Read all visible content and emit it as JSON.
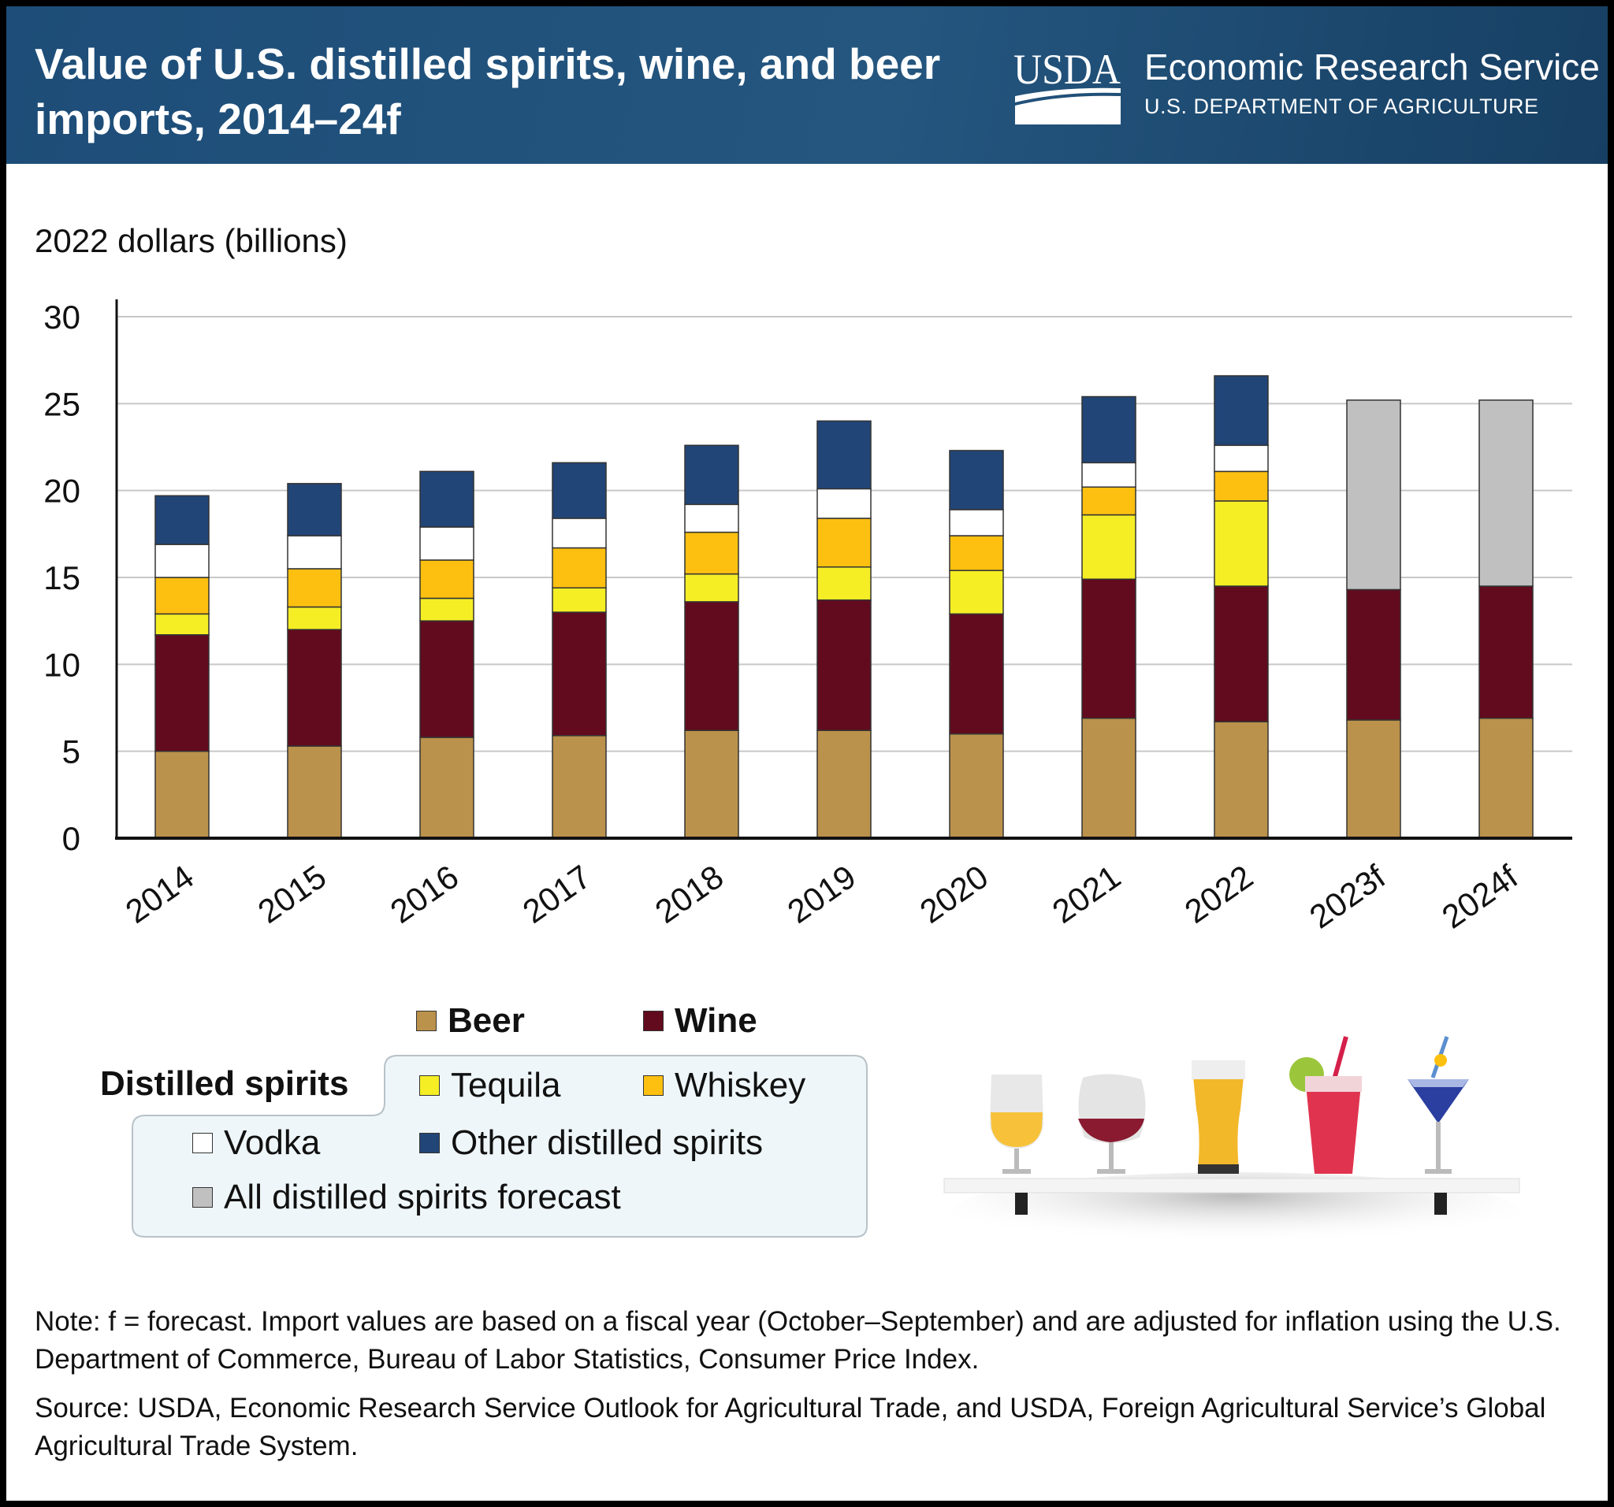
{
  "header": {
    "title": "Value of U.S. distilled spirits, wine, and beer imports, 2014–24f",
    "logo_text": "USDA",
    "agency": "Economic Research Service",
    "department": "U.S. DEPARTMENT OF AGRICULTURE"
  },
  "legend": {
    "group_label": "Distilled spirits",
    "items": [
      {
        "label": "Beer",
        "color": "#bb924b"
      },
      {
        "label": "Wine",
        "color": "#630b1e"
      },
      {
        "label": "Tequila",
        "color": "#f5ee25"
      },
      {
        "label": "Whiskey",
        "color": "#fdc010"
      },
      {
        "label": "Vodka",
        "color": "#ffffff"
      },
      {
        "label": "Other distilled spirits",
        "color": "#224577"
      },
      {
        "label": "All distilled spirits forecast",
        "color": "#c0c0c0"
      }
    ]
  },
  "chart_data": {
    "type": "bar",
    "stacked": true,
    "ylabel": "2022 dollars (billions)",
    "ylim": [
      0,
      30
    ],
    "yticks": [
      0,
      5,
      10,
      15,
      20,
      25,
      30
    ],
    "grid": true,
    "categories": [
      "2014",
      "2015",
      "2016",
      "2017",
      "2018",
      "2019",
      "2020",
      "2021",
      "2022",
      "2023f",
      "2024f"
    ],
    "series": [
      {
        "name": "Beer",
        "color": "#bb924b",
        "values": [
          5.0,
          5.3,
          5.8,
          5.9,
          6.2,
          6.2,
          6.0,
          6.9,
          6.7,
          6.8,
          6.9
        ]
      },
      {
        "name": "Wine",
        "color": "#630b1e",
        "values": [
          6.7,
          6.7,
          6.7,
          7.1,
          7.4,
          7.5,
          6.9,
          8.0,
          7.8,
          7.5,
          7.6
        ]
      },
      {
        "name": "Tequila",
        "color": "#f5ee25",
        "values": [
          1.2,
          1.3,
          1.3,
          1.4,
          1.6,
          1.9,
          2.5,
          3.7,
          4.9,
          null,
          null
        ]
      },
      {
        "name": "Whiskey",
        "color": "#fdc010",
        "values": [
          2.1,
          2.2,
          2.2,
          2.3,
          2.4,
          2.8,
          2.0,
          1.6,
          1.7,
          null,
          null
        ]
      },
      {
        "name": "Vodka",
        "color": "#ffffff",
        "values": [
          1.9,
          1.9,
          1.9,
          1.7,
          1.6,
          1.7,
          1.5,
          1.4,
          1.5,
          null,
          null
        ]
      },
      {
        "name": "Other distilled spirits",
        "color": "#224577",
        "values": [
          2.8,
          3.0,
          3.2,
          3.2,
          3.4,
          3.9,
          3.4,
          3.8,
          4.0,
          null,
          null
        ]
      },
      {
        "name": "All distilled spirits forecast",
        "color": "#c0c0c0",
        "values": [
          null,
          null,
          null,
          null,
          null,
          null,
          null,
          null,
          null,
          10.9,
          10.7
        ]
      }
    ]
  },
  "notes": {
    "note": "Note: f = forecast. Import values are based on a fiscal year (October–September) and are adjusted for inflation using the U.S. Department of Commerce, Bureau of Labor Statistics, Consumer Price Index.",
    "source": "Source: USDA, Economic Research Service Outlook for Agricultural Trade, and USDA, Foreign Agricultural Service’s Global Agricultural Trade System."
  }
}
